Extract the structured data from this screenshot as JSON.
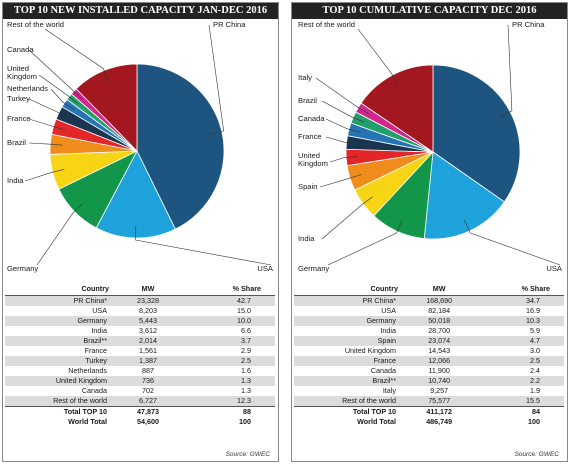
{
  "chart_data": [
    {
      "type": "pie",
      "title": "TOP 10 NEW INSTALLED CAPACITY JAN-DEC 2016",
      "legend": "callout-labels",
      "slices": [
        {
          "label": "PR China",
          "value": 42.7,
          "color": "#1d5580"
        },
        {
          "label": "USA",
          "value": 15.0,
          "color": "#1ea2dc"
        },
        {
          "label": "Germany",
          "value": 10.0,
          "color": "#12964a"
        },
        {
          "label": "India",
          "value": 6.6,
          "color": "#f7d414"
        },
        {
          "label": "Brazil",
          "value": 3.7,
          "color": "#ef8c1c"
        },
        {
          "label": "France",
          "value": 2.9,
          "color": "#e3262a"
        },
        {
          "label": "Turkey",
          "value": 2.5,
          "color": "#1a3550"
        },
        {
          "label": "Netherlands",
          "value": 1.6,
          "color": "#2574b4"
        },
        {
          "label": "United Kingdom",
          "value": 1.3,
          "color": "#23a06a"
        },
        {
          "label": "Canada",
          "value": 1.3,
          "color": "#d2268c"
        },
        {
          "label": "Rest of the world",
          "value": 12.3,
          "color": "#a31820"
        }
      ],
      "table": {
        "headers": [
          "Country",
          "MW",
          "% Share"
        ],
        "rows": [
          [
            "PR China*",
            "23,328",
            "42.7"
          ],
          [
            "USA",
            "8,203",
            "15.0"
          ],
          [
            "Germany",
            "5,443",
            "10.0"
          ],
          [
            "India",
            "3,612",
            "6.6"
          ],
          [
            "Brazil**",
            "2,014",
            "3.7"
          ],
          [
            "France",
            "1,561",
            "2.9"
          ],
          [
            "Turkey",
            "1,387",
            "2.5"
          ],
          [
            "Netherlands",
            "887",
            "1.6"
          ],
          [
            "United Kingdom",
            "736",
            "1.3"
          ],
          [
            "Canada",
            "702",
            "1.3"
          ],
          [
            "Rest of the world",
            "6,727",
            "12.3"
          ]
        ],
        "totals": [
          [
            "Total TOP 10",
            "47,873",
            "88"
          ],
          [
            "World Total",
            "54,600",
            "100"
          ]
        ]
      },
      "source": "Source: GWEC"
    },
    {
      "type": "pie",
      "title": "TOP 10 CUMULATIVE CAPACITY DEC 2016",
      "legend": "callout-labels",
      "slices": [
        {
          "label": "PR China",
          "value": 34.7,
          "color": "#1d5580"
        },
        {
          "label": "USA",
          "value": 16.9,
          "color": "#1ea2dc"
        },
        {
          "label": "Germany",
          "value": 10.3,
          "color": "#12964a"
        },
        {
          "label": "India",
          "value": 5.9,
          "color": "#f7d414"
        },
        {
          "label": "Spain",
          "value": 4.7,
          "color": "#ef8c1c"
        },
        {
          "label": "United Kingdom",
          "value": 3.0,
          "color": "#e3262a"
        },
        {
          "label": "France",
          "value": 2.5,
          "color": "#1a3550"
        },
        {
          "label": "Canada",
          "value": 2.4,
          "color": "#2574b4"
        },
        {
          "label": "Brazil",
          "value": 2.2,
          "color": "#23a06a"
        },
        {
          "label": "Italy",
          "value": 1.9,
          "color": "#d2268c"
        },
        {
          "label": "Rest of the world",
          "value": 15.5,
          "color": "#a31820"
        }
      ],
      "table": {
        "headers": [
          "Country",
          "MW",
          "% Share"
        ],
        "rows": [
          [
            "PR China*",
            "168,690",
            "34.7"
          ],
          [
            "USA",
            "82,184",
            "16.9"
          ],
          [
            "Germany",
            "50,018",
            "10.3"
          ],
          [
            "India",
            "28,700",
            "5.9"
          ],
          [
            "Spain",
            "23,074",
            "4.7"
          ],
          [
            "United Kingdom",
            "14,543",
            "3.0"
          ],
          [
            "France",
            "12,066",
            "2.5"
          ],
          [
            "Canada",
            "11,900",
            "2.4"
          ],
          [
            "Brazil**",
            "10,740",
            "2.2"
          ],
          [
            "Italy",
            "9,257",
            "1.9"
          ],
          [
            "Rest of the world",
            "75,577",
            "15.5"
          ]
        ],
        "totals": [
          [
            "Total TOP 10",
            "411,172",
            "84"
          ],
          [
            "World Total",
            "486,749",
            "100"
          ]
        ]
      },
      "source": "Source: GWEC"
    }
  ]
}
